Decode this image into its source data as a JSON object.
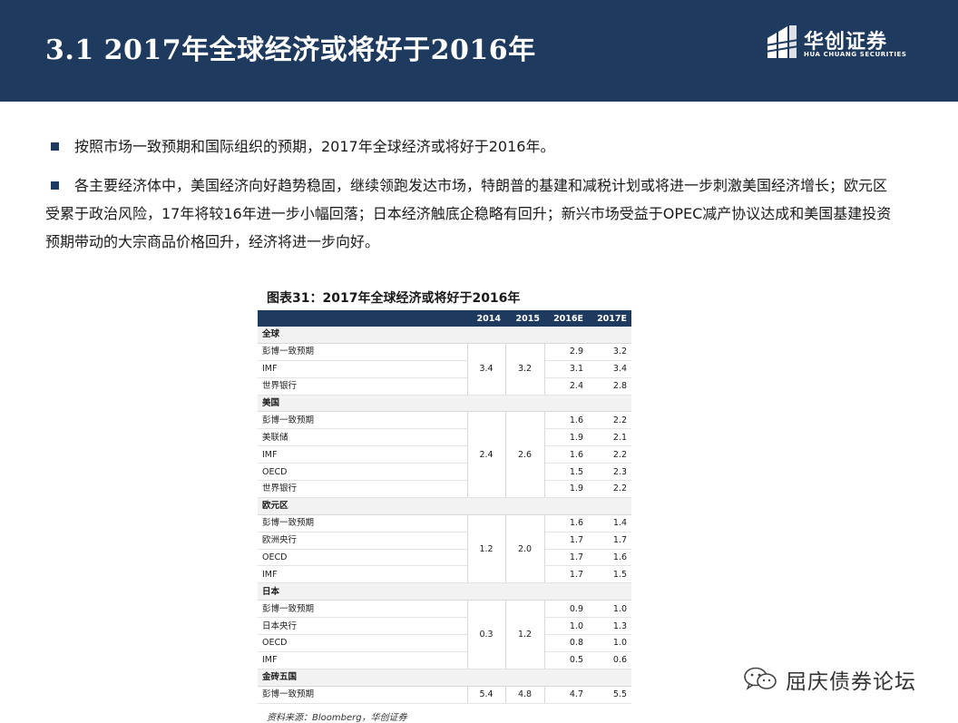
{
  "header": {
    "title": "3.1  2017年全球经济或将好于2016年",
    "logo_cn": "华创证券",
    "logo_en": "HUA CHUANG SECURITIES",
    "bg_color": "#1f3a5f"
  },
  "bullets": [
    "按照市场一致预期和国际组织的预期，2017年全球经济或将好于2016年。",
    "各主要经济体中，美国经济向好趋势稳固，继续领跑发达市场，特朗普的基建和减税计划或将进一步刺激美国经济增长；欧元区受累于政治风险，17年将较16年进一步小幅回落；日本经济触底企稳略有回升；新兴市场受益于OPEC减产协议达成和美国基建投资预期带动的大宗商品价格回升，经济将进一步向好。"
  ],
  "figure": {
    "caption": "图表31：2017年全球经济或将好于2016年",
    "columns": [
      "",
      "2014",
      "2015",
      "2016E",
      "2017E"
    ],
    "groups": [
      {
        "name": "全球",
        "y2014": "3.4",
        "y2015": "3.2",
        "rows": [
          {
            "label": "彭博一致预期",
            "y2016": "2.9",
            "y2017": "3.2"
          },
          {
            "label": "IMF",
            "y2016": "3.1",
            "y2017": "3.4"
          },
          {
            "label": "世界银行",
            "y2016": "2.4",
            "y2017": "2.8"
          }
        ]
      },
      {
        "name": "美国",
        "y2014": "2.4",
        "y2015": "2.6",
        "rows": [
          {
            "label": "彭博一致预期",
            "y2016": "1.6",
            "y2017": "2.2"
          },
          {
            "label": "美联储",
            "y2016": "1.9",
            "y2017": "2.1"
          },
          {
            "label": "IMF",
            "y2016": "1.6",
            "y2017": "2.2"
          },
          {
            "label": "OECD",
            "y2016": "1.5",
            "y2017": "2.3"
          },
          {
            "label": "世界银行",
            "y2016": "1.9",
            "y2017": "2.2"
          }
        ]
      },
      {
        "name": "欧元区",
        "y2014": "1.2",
        "y2015": "2.0",
        "rows": [
          {
            "label": "彭博一致预期",
            "y2016": "1.6",
            "y2017": "1.4"
          },
          {
            "label": "欧洲央行",
            "y2016": "1.7",
            "y2017": "1.7"
          },
          {
            "label": "OECD",
            "y2016": "1.7",
            "y2017": "1.6"
          },
          {
            "label": "IMF",
            "y2016": "1.7",
            "y2017": "1.5"
          }
        ]
      },
      {
        "name": "日本",
        "y2014": "0.3",
        "y2015": "1.2",
        "rows": [
          {
            "label": "彭博一致预期",
            "y2016": "0.9",
            "y2017": "1.0"
          },
          {
            "label": "日本央行",
            "y2016": "1.0",
            "y2017": "1.3"
          },
          {
            "label": "OECD",
            "y2016": "0.8",
            "y2017": "1.0"
          },
          {
            "label": "IMF",
            "y2016": "0.5",
            "y2017": "0.6"
          }
        ]
      },
      {
        "name": "金砖五国",
        "y2014": "5.4",
        "y2015": "4.8",
        "rows": [
          {
            "label": "彭博一致预期",
            "y2016": "4.7",
            "y2017": "5.5"
          }
        ]
      }
    ],
    "source": "资料来源：Bloomberg，华创证券"
  },
  "watermark": {
    "text": "屈庆债券论坛",
    "icon": "wechat-icon"
  }
}
